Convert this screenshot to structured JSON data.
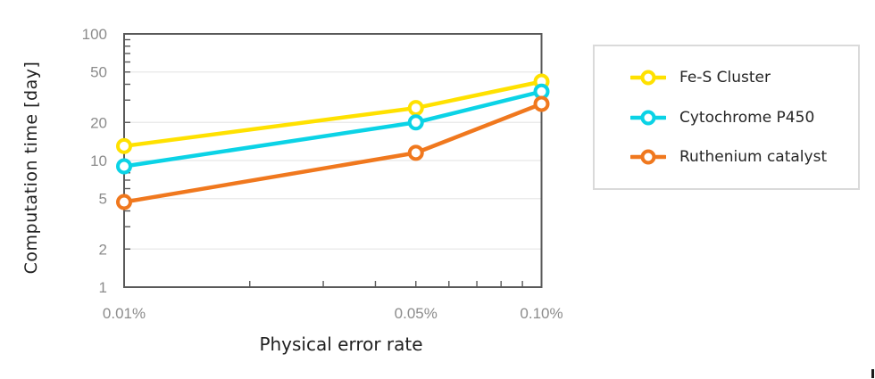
{
  "chart_data": {
    "type": "line",
    "title": "",
    "xlabel": "Physical error rate",
    "ylabel": "Computation time [day]",
    "x_scale": "log",
    "y_scale": "log",
    "grid": "horizontal",
    "legend_position": "outside-right",
    "x_percent": [
      0.01,
      0.05,
      0.1
    ],
    "x_axis": {
      "tick_labels": [
        "0.01%",
        "0.05%",
        "0.10%"
      ],
      "range_percent": [
        0.01,
        0.1
      ],
      "minor_ticks_percent": [
        0.02,
        0.03,
        0.04,
        0.05,
        0.06,
        0.07,
        0.08,
        0.09
      ]
    },
    "y_axis": {
      "tick_values": [
        100,
        50,
        20,
        10,
        5,
        2,
        1
      ],
      "gridline_values": [
        50,
        20,
        10,
        5,
        2
      ],
      "minor_tick_values": [
        2,
        3,
        4,
        5,
        6,
        7,
        8,
        9,
        20,
        30,
        40,
        50,
        60,
        70,
        80,
        90
      ],
      "range": [
        1,
        100
      ]
    },
    "series": [
      {
        "name": "Fe-S Cluster",
        "color": "#FFE100",
        "values_days": [
          13,
          26,
          42
        ]
      },
      {
        "name": "Cytochrome P450",
        "color": "#0BD3E6",
        "values_days": [
          9,
          20,
          35
        ]
      },
      {
        "name": "Ruthenium catalyst",
        "color": "#F0781E",
        "values_days": [
          4.7,
          11.5,
          28
        ]
      }
    ]
  },
  "styles": {
    "background": "#ffffff",
    "axis_color": "#595959",
    "grid_color": "#e8e8e8",
    "tick_label_color": "#8c8c8c",
    "title_color": "#1f1f1f",
    "legend_border_color": "#dadada",
    "legend_text_color": "#262626",
    "marker_fill": "#ffffff",
    "stray_mark_color": "#1a1a1a"
  }
}
